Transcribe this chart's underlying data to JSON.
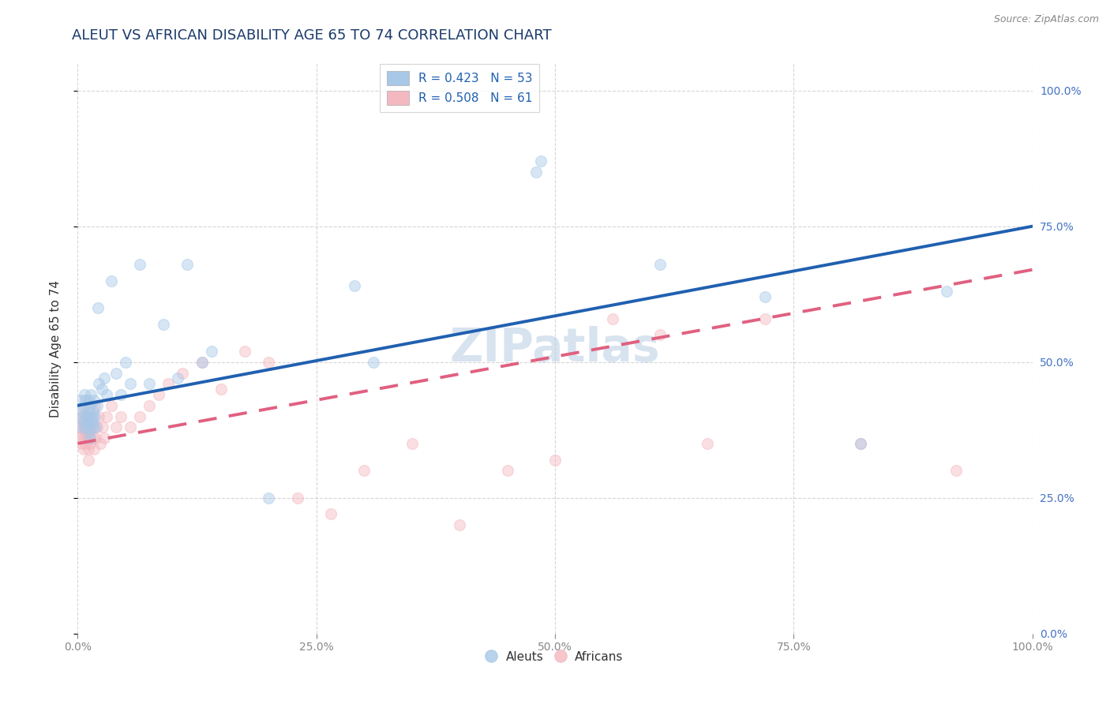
{
  "title": "ALEUT VS AFRICAN DISABILITY AGE 65 TO 74 CORRELATION CHART",
  "source": "Source: ZipAtlas.com",
  "xlabel": "",
  "ylabel": "Disability Age 65 to 74",
  "watermark": "ZIPatlas",
  "legend_r_aleuts": "R = 0.423",
  "legend_n_aleuts": "N = 53",
  "legend_r_africans": "R = 0.508",
  "legend_n_africans": "N = 61",
  "aleuts_color": "#a8c8e8",
  "africans_color": "#f4b8c0",
  "aleuts_line_color": "#2060b0",
  "africans_line_color": "#e06080",
  "background_color": "#ffffff",
  "grid_color": "#cccccc",
  "title_color": "#1a3a6a",
  "aleuts_x": [
    0.003,
    0.003,
    0.004,
    0.005,
    0.006,
    0.006,
    0.007,
    0.007,
    0.008,
    0.009,
    0.01,
    0.01,
    0.011,
    0.011,
    0.012,
    0.012,
    0.013,
    0.013,
    0.014,
    0.015,
    0.015,
    0.016,
    0.016,
    0.017,
    0.018,
    0.019,
    0.02,
    0.021,
    0.022,
    0.025,
    0.028,
    0.03,
    0.035,
    0.04,
    0.045,
    0.05,
    0.055,
    0.065,
    0.075,
    0.09,
    0.105,
    0.115,
    0.13,
    0.14,
    0.2,
    0.29,
    0.31,
    0.48,
    0.485,
    0.61,
    0.72,
    0.82,
    0.91
  ],
  "aleuts_y": [
    0.43,
    0.38,
    0.41,
    0.4,
    0.42,
    0.39,
    0.44,
    0.38,
    0.43,
    0.4,
    0.39,
    0.41,
    0.43,
    0.37,
    0.4,
    0.38,
    0.42,
    0.36,
    0.44,
    0.4,
    0.39,
    0.41,
    0.38,
    0.43,
    0.4,
    0.38,
    0.42,
    0.6,
    0.46,
    0.45,
    0.47,
    0.44,
    0.65,
    0.48,
    0.44,
    0.5,
    0.46,
    0.68,
    0.46,
    0.57,
    0.47,
    0.68,
    0.5,
    0.52,
    0.25,
    0.64,
    0.5,
    0.85,
    0.87,
    0.68,
    0.62,
    0.35,
    0.63
  ],
  "africans_x": [
    0.002,
    0.003,
    0.004,
    0.004,
    0.005,
    0.005,
    0.006,
    0.006,
    0.007,
    0.007,
    0.008,
    0.008,
    0.009,
    0.009,
    0.01,
    0.01,
    0.011,
    0.011,
    0.012,
    0.012,
    0.013,
    0.013,
    0.014,
    0.015,
    0.015,
    0.016,
    0.017,
    0.018,
    0.019,
    0.02,
    0.022,
    0.024,
    0.026,
    0.028,
    0.03,
    0.035,
    0.04,
    0.045,
    0.055,
    0.065,
    0.075,
    0.085,
    0.095,
    0.11,
    0.13,
    0.15,
    0.175,
    0.2,
    0.23,
    0.265,
    0.3,
    0.35,
    0.4,
    0.45,
    0.5,
    0.56,
    0.61,
    0.66,
    0.72,
    0.82,
    0.92
  ],
  "africans_y": [
    0.38,
    0.36,
    0.4,
    0.35,
    0.37,
    0.39,
    0.41,
    0.34,
    0.36,
    0.38,
    0.35,
    0.37,
    0.39,
    0.38,
    0.4,
    0.36,
    0.34,
    0.32,
    0.38,
    0.4,
    0.37,
    0.35,
    0.39,
    0.38,
    0.4,
    0.36,
    0.34,
    0.42,
    0.36,
    0.38,
    0.4,
    0.35,
    0.38,
    0.36,
    0.4,
    0.42,
    0.38,
    0.4,
    0.38,
    0.4,
    0.42,
    0.44,
    0.46,
    0.48,
    0.5,
    0.45,
    0.52,
    0.5,
    0.25,
    0.22,
    0.3,
    0.35,
    0.2,
    0.3,
    0.32,
    0.58,
    0.55,
    0.35,
    0.58,
    0.35,
    0.3
  ],
  "xlim": [
    0.0,
    1.0
  ],
  "ylim": [
    0.0,
    1.05
  ],
  "xticks": [
    0.0,
    0.25,
    0.5,
    0.75,
    1.0
  ],
  "xticklabels": [
    "0.0%",
    "25.0%",
    "50.0%",
    "75.0%",
    "100.0%"
  ],
  "yticks": [
    0.0,
    0.25,
    0.5,
    0.75,
    1.0
  ],
  "yticklabels": [
    "0.0%",
    "25.0%",
    "50.0%",
    "75.0%",
    "100.0%"
  ],
  "aleuts_line_x0": 0.0,
  "aleuts_line_y0": 0.42,
  "aleuts_line_x1": 1.0,
  "aleuts_line_y1": 0.75,
  "africans_line_x0": 0.0,
  "africans_line_y0": 0.35,
  "africans_line_x1": 1.0,
  "africans_line_y1": 0.67,
  "title_fontsize": 13,
  "axis_label_fontsize": 11,
  "tick_fontsize": 10,
  "legend_fontsize": 11,
  "marker_size": 100,
  "marker_alpha": 0.45,
  "line_width": 2.8
}
